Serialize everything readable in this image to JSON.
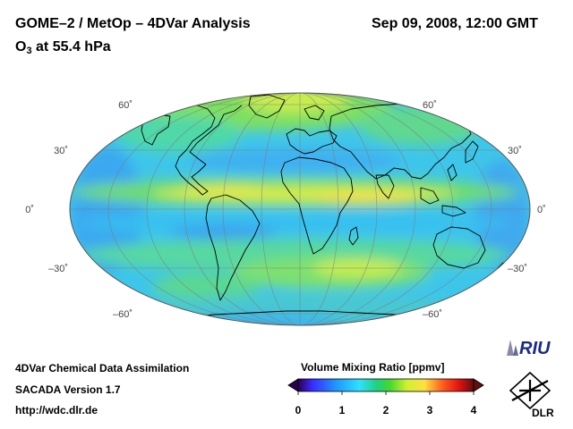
{
  "header": {
    "title": "GOME–2 / MetOp – 4DVar Analysis",
    "date": "Sep 09, 2008, 12:00 GMT",
    "species": "O",
    "species_sub": "3",
    "level": "at 55.4 hPa"
  },
  "map": {
    "projection": "Hammer-Aitoff (global)",
    "lat_labels_left": [
      "60˚",
      "30˚",
      "0˚",
      "–30˚",
      "–60˚"
    ],
    "lat_labels_right": [
      "60˚",
      "30˚",
      "0˚",
      "–30˚",
      "–60˚"
    ]
  },
  "footer": {
    "line1": "4DVar Chemical Data Assimilation",
    "line2": "SACADA Version 1.7",
    "line3": "http://wdc.dlr.de"
  },
  "colorbar": {
    "title": "Volume Mixing Ratio [ppmv]",
    "ticks": [
      "0",
      "1",
      "2",
      "3",
      "4"
    ],
    "min": 0,
    "max": 4
  },
  "logos": {
    "riu": "RIU",
    "dlr": "DLR"
  },
  "colors": {
    "ocean_bg": "#38c8e6",
    "low": "#3aa0ff",
    "mid": "#38e0a0",
    "high": "#f0f040",
    "coast": "#000000"
  }
}
